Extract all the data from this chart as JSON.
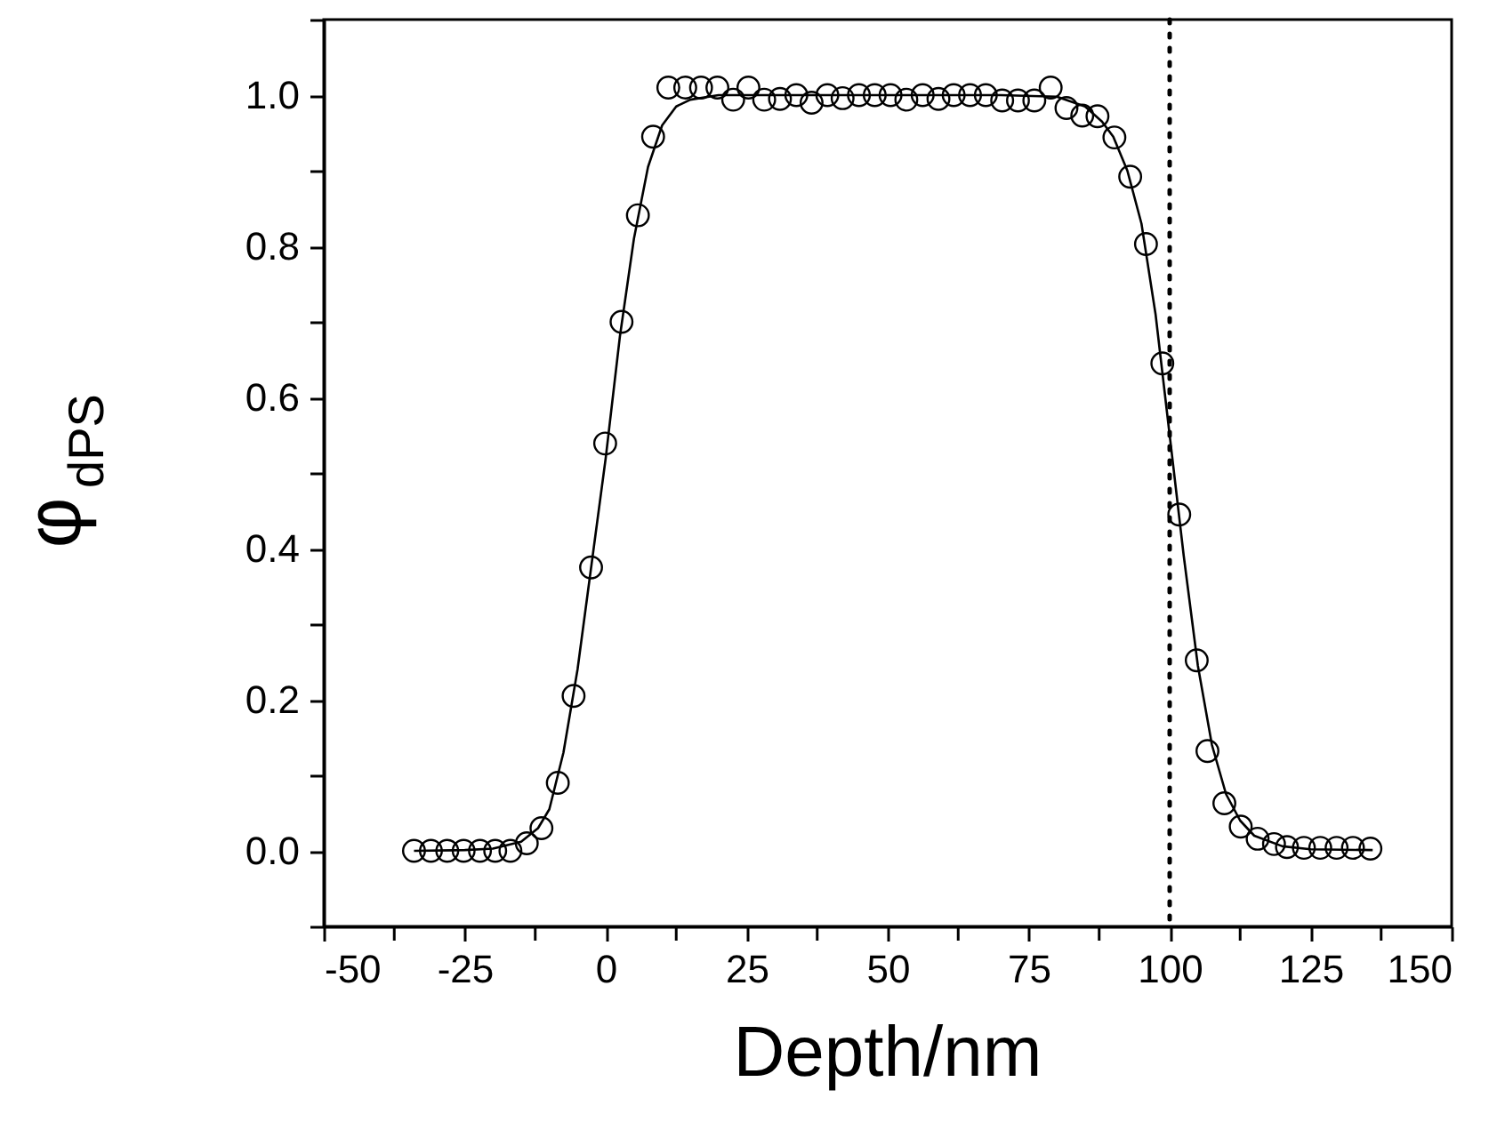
{
  "chart_data": {
    "type": "scatter",
    "xlabel": "Depth/nm",
    "ylabel": "φ$_{dPS}$",
    "xlim": [
      -50,
      150
    ],
    "ylim": [
      -0.1,
      1.1
    ],
    "xticks": [
      -50,
      {
        "value": -37.5,
        "label": null
      },
      -25,
      {
        "value": -12.5,
        "label": null
      },
      0,
      {
        "value": 12.5,
        "label": null
      },
      25,
      {
        "value": 37.5,
        "label": null
      },
      50,
      {
        "value": 62.5,
        "label": null
      },
      75,
      {
        "value": 87.5,
        "label": null
      },
      100,
      {
        "value": 112.5,
        "label": null
      },
      125,
      {
        "value": 137.5,
        "label": null
      },
      150
    ],
    "yticks": [
      {
        "value": -0.1,
        "label": null
      },
      {
        "value": 0.0,
        "label": "0.0"
      },
      {
        "value": 0.1,
        "label": null
      },
      {
        "value": 0.2,
        "label": "0.2"
      },
      {
        "value": 0.3,
        "label": null
      },
      {
        "value": 0.4,
        "label": "0.4"
      },
      {
        "value": 0.5,
        "label": null
      },
      {
        "value": 0.6,
        "label": "0.6"
      },
      {
        "value": 0.7,
        "label": null
      },
      {
        "value": 0.8,
        "label": "0.8"
      },
      {
        "value": 0.9,
        "label": null
      },
      {
        "value": 1.0,
        "label": "1.0"
      },
      {
        "value": 1.1,
        "label": null
      }
    ],
    "grid": false,
    "series": [
      {
        "marker": "circle",
        "color": "#000000",
        "x": [
          -34.0,
          -31.0,
          -28.1,
          -25.2,
          -22.3,
          -19.6,
          -16.9,
          -14.0,
          -11.4,
          -8.5,
          -5.7,
          -2.6,
          -0.1,
          2.8,
          5.7,
          8.4,
          11.1,
          14.1,
          16.9,
          19.8,
          22.6,
          25.3,
          28.1,
          30.9,
          33.8,
          36.5,
          39.3,
          42.0,
          44.9,
          47.7,
          50.5,
          53.3,
          56.2,
          59.0,
          61.7,
          64.6,
          67.4,
          70.3,
          73.1,
          76.0,
          78.9,
          81.7,
          84.5,
          87.2,
          90.2,
          93.0,
          95.8,
          98.7,
          101.7,
          104.8,
          106.7,
          109.7,
          112.6,
          115.6,
          118.5,
          120.8,
          123.8,
          126.7,
          129.6,
          132.5,
          135.6
        ],
        "values": [
          0.0,
          0.0,
          0.0,
          0.0,
          0.0,
          0.0,
          0.0,
          0.01,
          0.03,
          0.09,
          0.205,
          0.375,
          0.539,
          0.7,
          0.841,
          0.945,
          1.01,
          1.01,
          1.01,
          1.01,
          0.994,
          1.01,
          0.994,
          0.995,
          1.0,
          0.99,
          1.0,
          0.996,
          1.0,
          1.0,
          1.0,
          0.994,
          1.0,
          0.995,
          1.0,
          1.0,
          1.0,
          0.993,
          0.993,
          0.993,
          1.01,
          0.983,
          0.973,
          0.972,
          0.944,
          0.892,
          0.803,
          0.645,
          0.445,
          0.252,
          0.132,
          0.063,
          0.032,
          0.016,
          0.009,
          0.005,
          0.004,
          0.004,
          0.004,
          0.004,
          0.003
        ]
      },
      {
        "type": "line",
        "line_style": "solid",
        "color": "#000000",
        "x": [
          -34,
          -25,
          -20,
          -15,
          -12,
          -10,
          -7.5,
          -5,
          -2.5,
          0,
          2.5,
          5,
          7.5,
          10,
          12.5,
          15,
          20,
          30,
          50,
          70,
          80,
          85,
          88,
          90,
          92.5,
          95,
          97.5,
          100,
          102.5,
          105,
          107.5,
          110,
          112.5,
          115,
          120,
          125,
          136
        ],
        "values": [
          0.0,
          0.001,
          0.003,
          0.012,
          0.03,
          0.055,
          0.13,
          0.24,
          0.38,
          0.52,
          0.68,
          0.81,
          0.905,
          0.96,
          0.985,
          0.994,
          1.0,
          1.0,
          1.0,
          1.0,
          0.998,
          0.985,
          0.965,
          0.945,
          0.9,
          0.83,
          0.71,
          0.55,
          0.39,
          0.245,
          0.14,
          0.075,
          0.04,
          0.02,
          0.006,
          0.002,
          0.001
        ]
      }
    ],
    "ref_lines": [
      {
        "axis": "x",
        "value": 100,
        "line_style": "dotted",
        "color": "#000000"
      }
    ]
  }
}
